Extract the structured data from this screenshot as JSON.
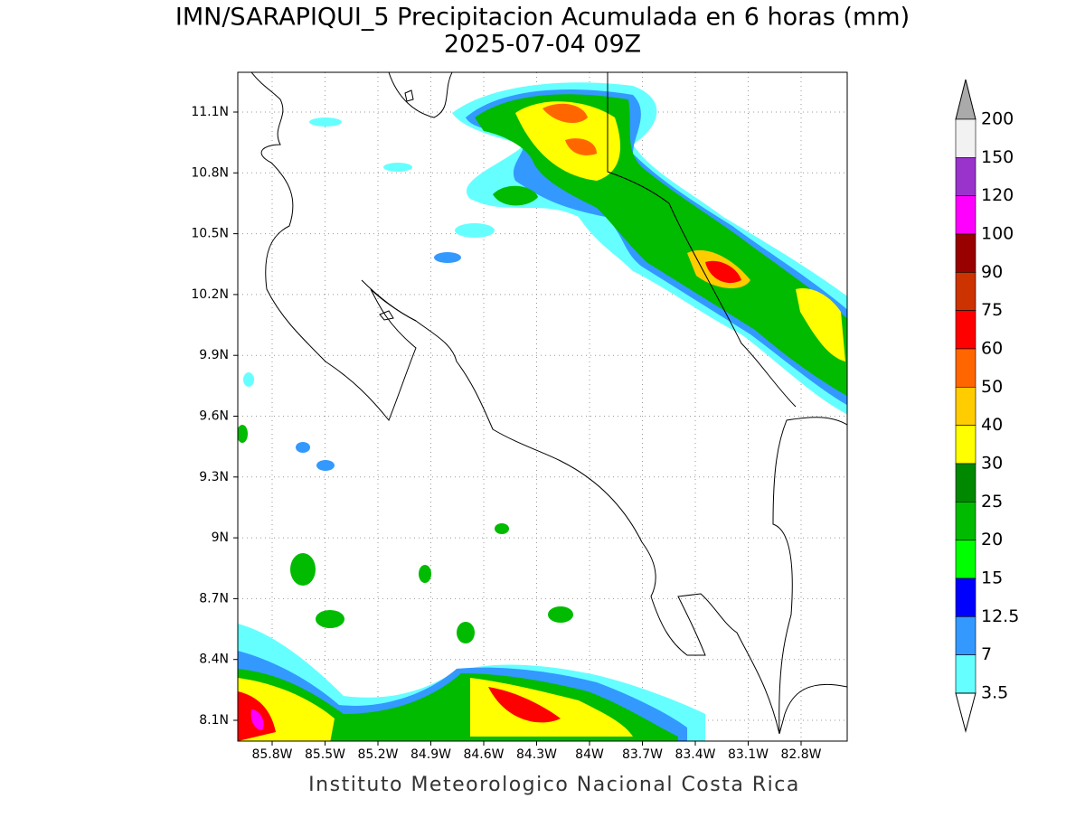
{
  "title": "IMN/SARAPIQUI_5 Precipitacion Acumulada en 6 horas (mm)",
  "subtitle": "2025-07-04 09Z",
  "map": {
    "lat_labels": [
      "11.1N",
      "10.8N",
      "10.5N",
      "10.2N",
      "9.9N",
      "9.6N",
      "9.3N",
      "9N",
      "8.7N",
      "8.4N",
      "8.1N"
    ],
    "lon_labels": [
      "85.8W",
      "85.5W",
      "85.2W",
      "84.9W",
      "84.6W",
      "84.3W",
      "84W",
      "83.7W",
      "83.4W",
      "83.1W",
      "82.8W"
    ]
  },
  "colorbar": {
    "levels": [
      "200",
      "150",
      "120",
      "100",
      "90",
      "75",
      "60",
      "50",
      "40",
      "30",
      "25",
      "20",
      "15",
      "12.5",
      "7",
      "3.5"
    ],
    "colors": [
      "#f2f2f2",
      "#9933cc",
      "#ff00ff",
      "#990000",
      "#cc3300",
      "#ff0000",
      "#ff6600",
      "#ffcc00",
      "#ffff00",
      "#008800",
      "#00bb00",
      "#00ff00",
      "#0000ff",
      "#3399ff",
      "#66ffff"
    ],
    "over_color": "#aaaaaa",
    "under_color": "#ffffff"
  },
  "footer": "Instituto Meteorologico Nacional Costa Rica"
}
